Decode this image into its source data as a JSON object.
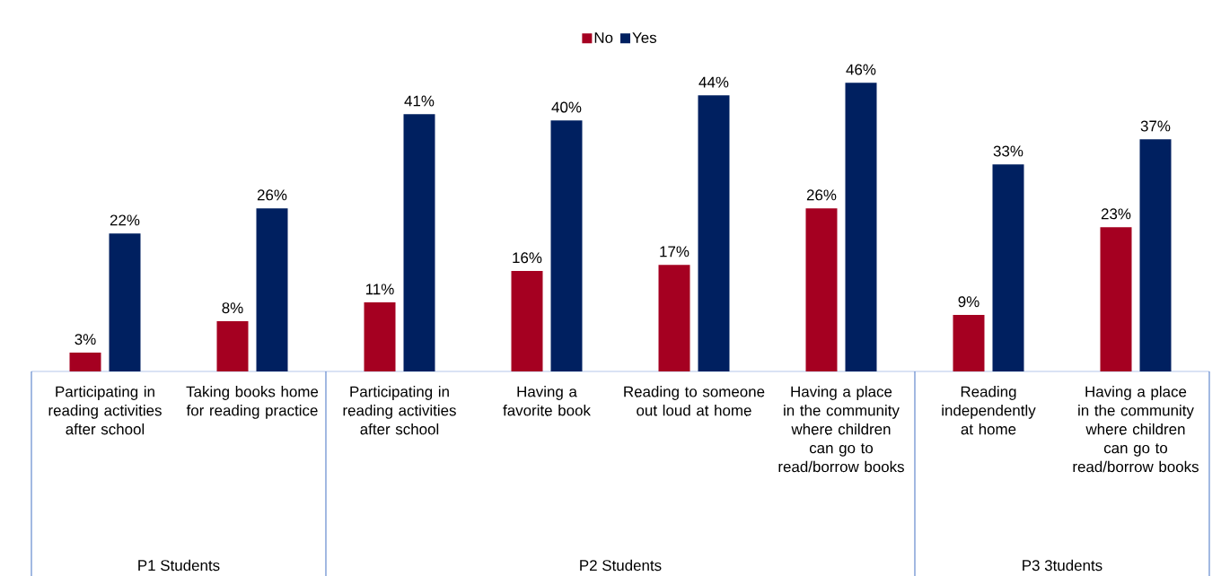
{
  "chart_data": {
    "type": "bar",
    "categories": [
      "Participating in reading activities after school",
      "Taking books home for reading practice",
      "Participating in reading activities after school",
      "Having a favorite book",
      "Reading to someone out loud at home",
      "Having a place in the community where children can go to read/borrow books",
      "Reading independently at home",
      "Having a place in the community where children can go to read/borrow books"
    ],
    "series": [
      {
        "name": "No",
        "color": "#a50021",
        "values": [
          3,
          8,
          11,
          16,
          17,
          26,
          9,
          23
        ],
        "value_labels": [
          "3%",
          "8%",
          "11%",
          "16%",
          "17%",
          "26%",
          "9%",
          "23%"
        ]
      },
      {
        "name": "Yes",
        "color": "#002060",
        "values": [
          22,
          26,
          41,
          40,
          44,
          46,
          33,
          37
        ],
        "value_labels": [
          "22%",
          "26%",
          "41%",
          "40%",
          "44%",
          "46%",
          "33%",
          "37%"
        ]
      }
    ],
    "legend": "top",
    "annotations": [
      "P1 Students",
      "P2 Students",
      "P3 3tudents"
    ]
  }
}
